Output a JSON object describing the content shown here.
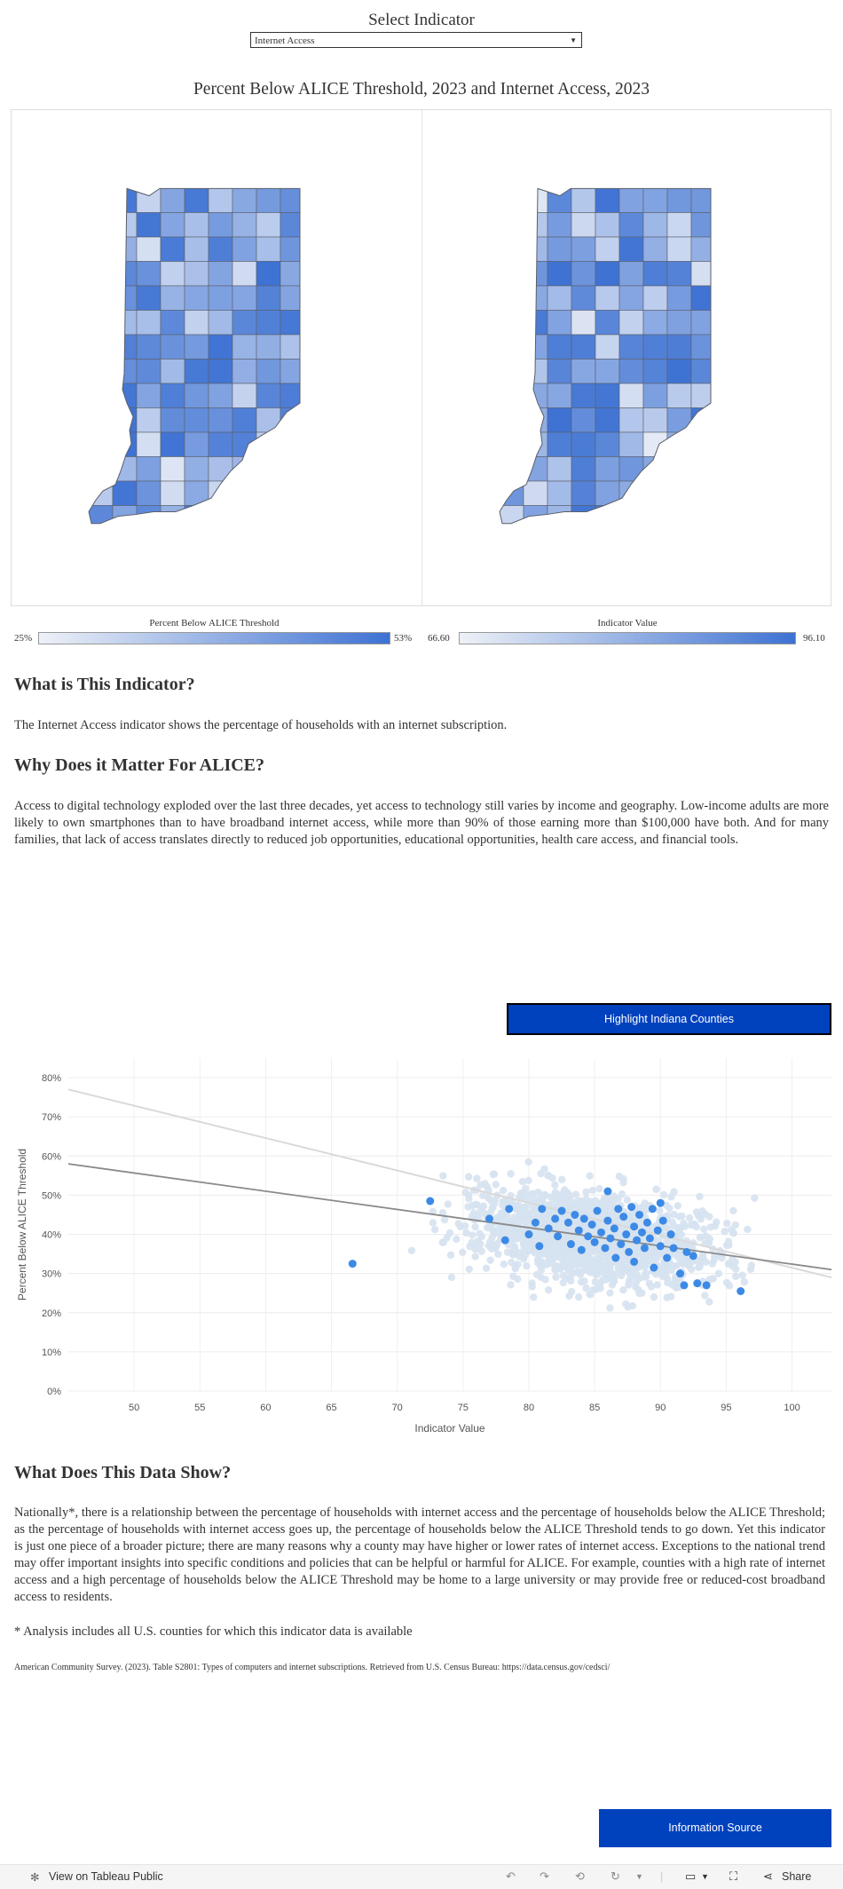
{
  "selector": {
    "label": "Select Indicator",
    "value": "Internet Access"
  },
  "chart_title": "Percent Below ALICE Threshold, 2023 and Internet Access, 2023",
  "legends": {
    "left": {
      "title": "Percent Below ALICE Threshold",
      "min": "25%",
      "max": "53%"
    },
    "right": {
      "title": "Indicator Value",
      "min": "66.60",
      "max": "96.10"
    }
  },
  "colors": {
    "scale_low": "#eef1f7",
    "scale_high": "#3e72d3",
    "highlight": "#3c8ae6",
    "button": "#0041be"
  },
  "sections": {
    "what_heading": "What is This Indicator?",
    "what_text": "The Internet Access indicator shows the percentage of households with an internet subscription.",
    "why_heading": "Why Does it Matter For ALICE?",
    "why_text": "Access to digital technology exploded over the last three decades, yet access to technology still varies by income and geography. Low-income adults are more likely to own smartphones than to have broadband internet access, while more than 90% of those earning more than $100,000 have both. And for many families, that lack of access translates directly to reduced job opportunities, educational opportunities, health care access, and financial tools.",
    "shows_heading": "What Does This Data Show?",
    "shows_text": "Nationally*, there is a relationship between the percentage of households with internet access and the percentage of households below the ALICE Threshold; as the percentage of households with internet access goes up, the percentage of households below the ALICE Threshold tends to go down. Yet this indicator is just one piece of a broader picture; there are many reasons why a county may have higher or lower rates of internet access. Exceptions to the national trend may offer important insights into specific conditions and policies that can be helpful or harmful for ALICE. For example, counties with a high rate of internet access and a high percentage of households below the ALICE Threshold may be home to a large university or may provide free or reduced-cost broadband access to residents.",
    "footnote": "* Analysis includes all U.S. counties for which this indicator data is available",
    "source": "American Community Survey. (2023). Table S2801: Types of computers and internet subscriptions. Retrieved from U.S. Census Bureau: https://data.census.gov/cedsci/"
  },
  "highlight_button": "Highlight Indiana Counties",
  "info_button": "Information Source",
  "footer": {
    "view_label": "View on Tableau Public",
    "share_label": "Share"
  },
  "chart_data": {
    "type": "scatter",
    "title": "",
    "xlabel": "Indicator Value",
    "ylabel": "Percent Below ALICE Threshold",
    "xlim": [
      45,
      103
    ],
    "ylim": [
      0,
      85
    ],
    "x_ticks": [
      "50",
      "55",
      "60",
      "65",
      "70",
      "75",
      "80",
      "85",
      "90",
      "95",
      "100"
    ],
    "y_ticks": [
      "0%",
      "10%",
      "20%",
      "30%",
      "40%",
      "50%",
      "60%",
      "70%",
      "80%"
    ],
    "national_trend": {
      "x": [
        45,
        103
      ],
      "y": [
        58,
        31
      ]
    },
    "light_trend": {
      "x": [
        45,
        103
      ],
      "y": [
        77,
        29
      ]
    },
    "indiana_points": [
      [
        66.6,
        32.5
      ],
      [
        72.5,
        48.5
      ],
      [
        77.0,
        44.0
      ],
      [
        78.2,
        38.5
      ],
      [
        78.5,
        46.5
      ],
      [
        80.0,
        40.0
      ],
      [
        80.5,
        43.0
      ],
      [
        80.8,
        37.0
      ],
      [
        81.0,
        46.5
      ],
      [
        81.5,
        41.5
      ],
      [
        82.0,
        44.0
      ],
      [
        82.2,
        39.5
      ],
      [
        82.5,
        46.0
      ],
      [
        83.0,
        43.0
      ],
      [
        83.2,
        37.5
      ],
      [
        83.5,
        45.0
      ],
      [
        83.8,
        41.0
      ],
      [
        84.0,
        36.0
      ],
      [
        84.2,
        44.0
      ],
      [
        84.5,
        39.5
      ],
      [
        84.8,
        42.5
      ],
      [
        85.0,
        38.0
      ],
      [
        85.2,
        46.0
      ],
      [
        85.5,
        40.5
      ],
      [
        85.8,
        36.5
      ],
      [
        86.0,
        51.0
      ],
      [
        86.0,
        43.5
      ],
      [
        86.2,
        39.0
      ],
      [
        86.5,
        41.5
      ],
      [
        86.6,
        34.0
      ],
      [
        86.8,
        46.5
      ],
      [
        87.0,
        37.5
      ],
      [
        87.2,
        44.5
      ],
      [
        87.4,
        40.0
      ],
      [
        87.6,
        35.5
      ],
      [
        87.8,
        47.0
      ],
      [
        88.0,
        42.0
      ],
      [
        88.0,
        33.0
      ],
      [
        88.2,
        38.5
      ],
      [
        88.4,
        45.0
      ],
      [
        88.6,
        40.5
      ],
      [
        88.8,
        36.5
      ],
      [
        89.0,
        43.0
      ],
      [
        89.2,
        39.0
      ],
      [
        89.4,
        46.5
      ],
      [
        89.5,
        31.5
      ],
      [
        89.8,
        41.0
      ],
      [
        90.0,
        48.0
      ],
      [
        90.0,
        37.0
      ],
      [
        90.2,
        43.5
      ],
      [
        90.5,
        34.0
      ],
      [
        90.8,
        40.0
      ],
      [
        91.0,
        36.5
      ],
      [
        91.5,
        30.0
      ],
      [
        91.8,
        27.0
      ],
      [
        92.0,
        35.5
      ],
      [
        92.5,
        34.5
      ],
      [
        92.8,
        27.5
      ],
      [
        93.5,
        27.0
      ],
      [
        96.1,
        25.5
      ]
    ]
  }
}
